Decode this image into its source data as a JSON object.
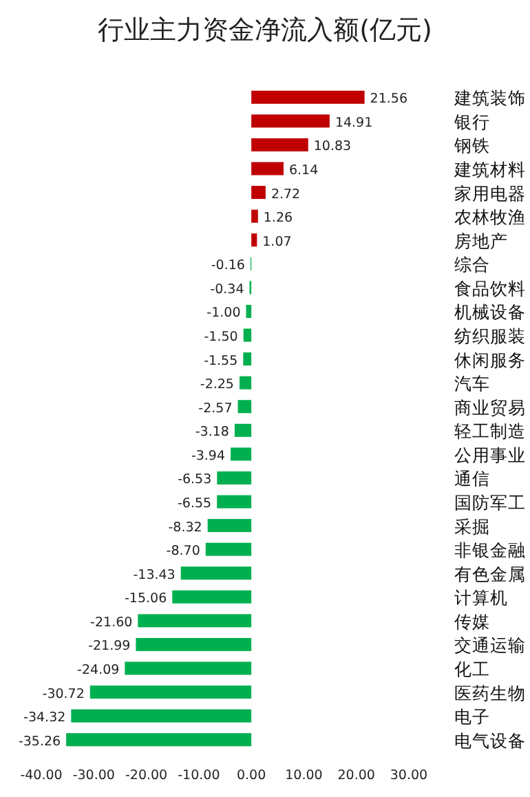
{
  "chart_data": {
    "type": "bar",
    "orientation": "horizontal",
    "title": "行业主力资金净流入额(亿元)",
    "categories": [
      "建筑装饰",
      "银行",
      "钢铁",
      "建筑材料",
      "家用电器",
      "农林牧渔",
      "房地产",
      "综合",
      "食品饮料",
      "机械设备",
      "纺织服装",
      "休闲服务",
      "汽车",
      "商业贸易",
      "轻工制造",
      "公用事业",
      "通信",
      "国防军工",
      "采掘",
      "非银金融",
      "有色金属",
      "计算机",
      "传媒",
      "交通运输",
      "化工",
      "医药生物",
      "电子",
      "电气设备"
    ],
    "values": [
      21.56,
      14.91,
      10.83,
      6.14,
      2.72,
      1.26,
      1.07,
      -0.16,
      -0.34,
      -1.0,
      -1.5,
      -1.55,
      -2.25,
      -2.57,
      -3.18,
      -3.94,
      -6.53,
      -6.55,
      -8.32,
      -8.7,
      -13.43,
      -15.06,
      -21.6,
      -21.99,
      -24.09,
      -30.72,
      -34.32,
      -35.26
    ],
    "value_labels": [
      "21.56",
      "14.91",
      "10.83",
      "6.14",
      "2.72",
      "1.26",
      "1.07",
      "-0.16",
      "-0.34",
      "-1.00",
      "-1.50",
      "-1.55",
      "-2.25",
      "-2.57",
      "-3.18",
      "-3.94",
      "-6.53",
      "-6.55",
      "-8.32",
      "-8.70",
      "-13.43",
      "-15.06",
      "-21.60",
      "-21.99",
      "-24.09",
      "-30.72",
      "-34.32",
      "-35.26"
    ],
    "colors": [
      "#c00000",
      "#c00000",
      "#c00000",
      "#c00000",
      "#c00000",
      "#c00000",
      "#c00000",
      "#00b050",
      "#00b050",
      "#00b050",
      "#00b050",
      "#00b050",
      "#00b050",
      "#00b050",
      "#00b050",
      "#00b050",
      "#00b050",
      "#00b050",
      "#00b050",
      "#00b050",
      "#00b050",
      "#00b050",
      "#00b050",
      "#00b050",
      "#00b050",
      "#00b050",
      "#00b050",
      "#00b050"
    ],
    "xlim": [
      -40,
      30
    ],
    "xticks": [
      {
        "value": -40,
        "label": "-40.00"
      },
      {
        "value": -30,
        "label": "-30.00"
      },
      {
        "value": -20,
        "label": "-20.00"
      },
      {
        "value": -10,
        "label": "-10.00"
      },
      {
        "value": 0,
        "label": "0.00"
      },
      {
        "value": 10,
        "label": "10.00"
      },
      {
        "value": 20,
        "label": "20.00"
      },
      {
        "value": 30,
        "label": "30.00"
      }
    ],
    "grid": false
  }
}
